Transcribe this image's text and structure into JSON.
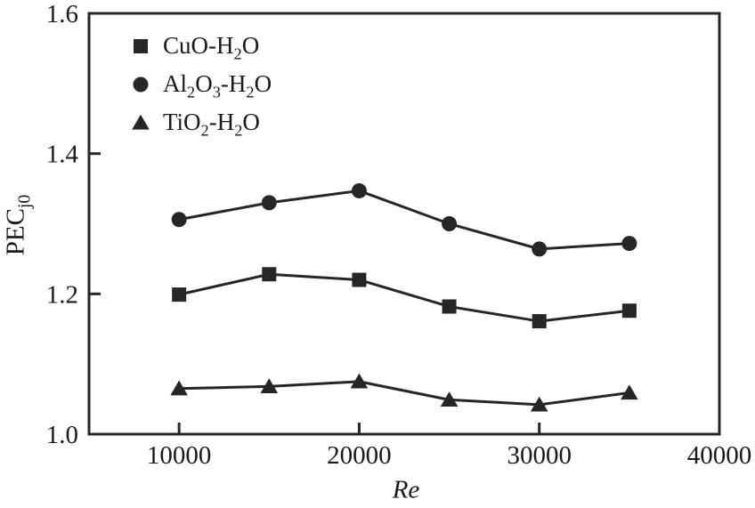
{
  "figure": {
    "background": "#ffffff",
    "ink_color": "#262626",
    "text_color": "#1a1a1a"
  },
  "chart_data": {
    "type": "line",
    "x": [
      10000,
      15000,
      20000,
      25000,
      30000,
      35000
    ],
    "series": [
      {
        "key": "cuo-h2o",
        "name": "CuO-H2O",
        "marker": "square",
        "values": [
          1.199,
          1.228,
          1.22,
          1.182,
          1.161,
          1.176
        ]
      },
      {
        "key": "al2o3-h2o",
        "name": "Al2O3-H2O",
        "marker": "circle",
        "values": [
          1.306,
          1.33,
          1.347,
          1.3,
          1.264,
          1.272
        ]
      },
      {
        "key": "tio2-h2o",
        "name": "TiO2-H2O",
        "marker": "triangle",
        "values": [
          1.065,
          1.068,
          1.075,
          1.049,
          1.042,
          1.059
        ]
      }
    ],
    "xlabel": "Re",
    "ylabel": "PEC",
    "ylabel_sub": "j0",
    "xlim": [
      5000,
      40000
    ],
    "ylim": [
      1.0,
      1.6
    ],
    "xticks": [
      10000,
      20000,
      30000,
      40000
    ],
    "xtick_labels": [
      "10000",
      "20000",
      "30000",
      "40000"
    ],
    "yticks": [
      1.0,
      1.2,
      1.4,
      1.6
    ],
    "ytick_labels": [
      "1.0",
      "1.2",
      "1.4",
      "1.6"
    ],
    "grid": false,
    "legend_position": "upper-left",
    "legend": [
      {
        "key": "cuo-h2o",
        "marker": "square",
        "segments": [
          {
            "t": "CuO-H"
          },
          {
            "s": "2"
          },
          {
            "t": "O"
          }
        ]
      },
      {
        "key": "al2o3-h2o",
        "marker": "circle",
        "segments": [
          {
            "t": "Al"
          },
          {
            "s": "2"
          },
          {
            "t": "O"
          },
          {
            "s": "3"
          },
          {
            "t": "-H"
          },
          {
            "s": "2"
          },
          {
            "t": "O"
          }
        ]
      },
      {
        "key": "tio2-h2o",
        "marker": "triangle",
        "segments": [
          {
            "t": "TiO"
          },
          {
            "s": "2"
          },
          {
            "t": "-H"
          },
          {
            "s": "2"
          },
          {
            "t": "O"
          }
        ]
      }
    ]
  }
}
